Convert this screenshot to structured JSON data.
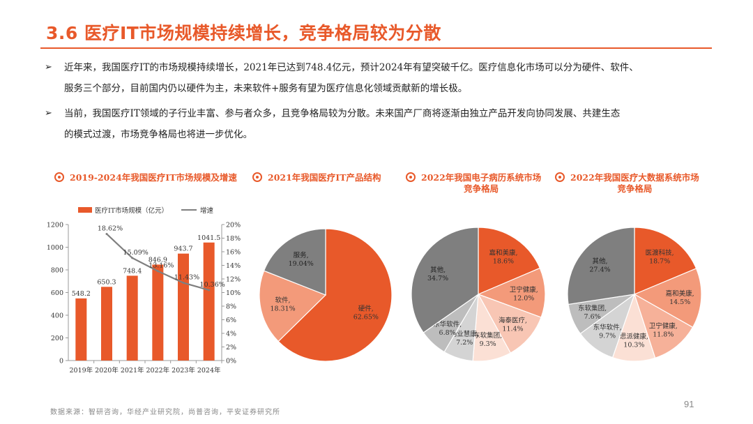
{
  "header": {
    "title": "3.6 医疗IT市场规模持续增长，竞争格局较为分散"
  },
  "bullets": [
    {
      "marker": "➢",
      "line1": "近年来，我国医疗IT的市场规模持续增长，2021年已达到748.4亿元，预计2024年有望突破千亿。医疗信息化市场可以分为硬件、软件、",
      "line2": "服务三个部分，目前国内仍以硬件为主，未来软件+服务有望为医疗信息化领域贡献新的增长极。"
    },
    {
      "marker": "➢",
      "line1": "当前，我国医疗IT领域的子行业丰富、参与者众多，且竞争格局较为分散。未来国产厂商将逐渐由独立产品开发向协同发展、共建生态",
      "line2": "的模式过渡，市场竞争格局也将进一步优化。"
    }
  ],
  "chart_titles": [
    {
      "line1": "2019-2024年我国医疗IT市场规模及增速",
      "line2": ""
    },
    {
      "line1": "2021年我国医疗IT产品结构",
      "line2": ""
    },
    {
      "line1": "2022年我国电子病历系统市场",
      "line2": "竞争格局"
    },
    {
      "line1": "2022年我国医疗大数据系统市场",
      "line2": "竞争格局"
    }
  ],
  "chart_data": [
    {
      "type": "bar",
      "categories": [
        "2019年",
        "2020年",
        "2021年",
        "2022年",
        "2023年",
        "2024年"
      ],
      "series": [
        {
          "name": "医疗IT市场规模（亿元）",
          "kind": "bar",
          "axis": "left",
          "values": [
            548.2,
            650.3,
            748.4,
            846.9,
            943.7,
            1041.5
          ],
          "labels": [
            "548.2",
            "650.3",
            "748.4",
            "846.9",
            "943.7",
            "1041.5"
          ],
          "color": "#e8592a"
        },
        {
          "name": "增速",
          "kind": "line",
          "axis": "right",
          "values": [
            null,
            18.62,
            15.09,
            13.16,
            11.43,
            10.36
          ],
          "labels": [
            "",
            "18.62%",
            "15.09%",
            "13.16%",
            "11.43%",
            "10.36%"
          ],
          "color": "#7f7f7f"
        }
      ],
      "ylim_left": [
        0,
        1200
      ],
      "yticks_left": [
        "0",
        "200",
        "400",
        "600",
        "800",
        "1000",
        "1200"
      ],
      "ylim_right": [
        0,
        20
      ],
      "yticks_right": [
        "0%",
        "2%",
        "4%",
        "6%",
        "8%",
        "10%",
        "12%",
        "14%",
        "16%",
        "18%",
        "20%"
      ],
      "legend": [
        "医疗IT市场规模（亿元）",
        "增速"
      ]
    },
    {
      "type": "pie",
      "slices": [
        {
          "name": "硬件",
          "value": 62.65,
          "label": "62.65%",
          "color": "#e8592a"
        },
        {
          "name": "软件",
          "value": 18.31,
          "label": "18.31%",
          "color": "#f39a7a"
        },
        {
          "name": "服务",
          "value": 19.04,
          "label": "19.04%",
          "color": "#7f7f7f"
        }
      ]
    },
    {
      "type": "pie",
      "slices": [
        {
          "name": "嘉和美康",
          "value": 18.6,
          "label": "18.6%",
          "color": "#e8592a"
        },
        {
          "name": "卫宁健康",
          "value": 12.0,
          "label": "12.0%",
          "color": "#f39a7a"
        },
        {
          "name": "海泰医疗",
          "value": 11.4,
          "label": "11.4%",
          "color": "#f8c6b4"
        },
        {
          "name": "东软集团",
          "value": 9.3,
          "label": "9.3%",
          "color": "#fbe0d5"
        },
        {
          "name": "创业慧康",
          "value": 7.2,
          "label": "7.2%",
          "color": "#d4d4d4"
        },
        {
          "name": "东华软件",
          "value": 6.8,
          "label": "6.8%",
          "color": "#bdbdbd"
        },
        {
          "name": "其他",
          "value": 34.7,
          "label": "34.7%",
          "color": "#7f7f7f"
        }
      ]
    },
    {
      "type": "pie",
      "slices": [
        {
          "name": "医渡科技",
          "value": 18.7,
          "label": "18.7%",
          "color": "#e8592a"
        },
        {
          "name": "嘉和美康",
          "value": 14.5,
          "label": "14.5%",
          "color": "#f39a7a"
        },
        {
          "name": "卫宁健康",
          "value": 11.8,
          "label": "11.8%",
          "color": "#f6b199"
        },
        {
          "name": "思派健康",
          "value": 10.3,
          "label": "10.3%",
          "color": "#fbe0d5"
        },
        {
          "name": "东华软件",
          "value": 9.7,
          "label": "9.7%",
          "color": "#d4d4d4"
        },
        {
          "name": "东软集团",
          "value": 7.6,
          "label": "7.6%",
          "color": "#bdbdbd"
        },
        {
          "name": "其他",
          "value": 27.4,
          "label": "27.4%",
          "color": "#7f7f7f"
        }
      ]
    }
  ],
  "footer": {
    "source": "数据来源：智研咨询，华经产业研究院，尚普咨询，平安证券研究所",
    "page_number": "91"
  }
}
